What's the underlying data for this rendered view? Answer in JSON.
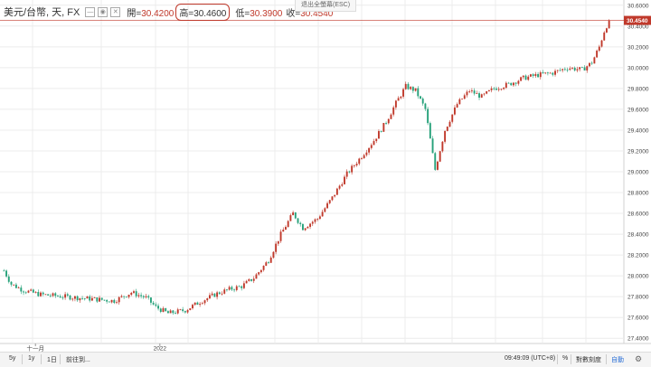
{
  "legend": {
    "symbol": "美元/台幣, 天, FX",
    "open_label": "開=",
    "open": "30.4200",
    "high_label": "高=",
    "high": "30.4600",
    "low_label": "低=",
    "low": "30.3900",
    "close_label": "收=",
    "close": "30.4540"
  },
  "esc_hint": "退出全螢幕(ESC)",
  "last_price": "30.4540",
  "colors": {
    "up": "#c0392b",
    "down": "#26a17a",
    "grid": "#ececec",
    "highlight": "#c0392b"
  },
  "bottom": {
    "btn_5y": "5y",
    "btn_1y": "1y",
    "btn_1d": "1日",
    "goto": "前往到...",
    "time": "09:49:09 (UTC+8)",
    "pct": "%",
    "log": "對數刻度",
    "auto": "自動"
  },
  "chart_data": {
    "type": "candlestick",
    "y_ticks": [
      "30.6000",
      "30.4000",
      "30.2000",
      "30.0000",
      "29.8000",
      "29.6000",
      "29.4000",
      "29.2000",
      "29.0000",
      "28.8000",
      "28.6000",
      "28.4000",
      "28.2000",
      "28.0000",
      "27.8000",
      "27.6000",
      "27.4000"
    ],
    "ylim": [
      27.35,
      30.65
    ],
    "x_ticks": [
      {
        "label": "十一月",
        "pos": 0.057
      },
      {
        "label": "2022",
        "pos": 0.257
      }
    ],
    "anchors": [
      [
        0,
        28.05
      ],
      [
        3,
        27.92
      ],
      [
        8,
        27.86
      ],
      [
        15,
        27.82
      ],
      [
        25,
        27.8
      ],
      [
        35,
        27.78
      ],
      [
        45,
        27.76
      ],
      [
        52,
        27.84
      ],
      [
        58,
        27.79
      ],
      [
        62,
        27.7
      ],
      [
        67,
        27.64
      ],
      [
        74,
        27.67
      ],
      [
        80,
        27.75
      ],
      [
        87,
        27.83
      ],
      [
        92,
        27.87
      ],
      [
        97,
        27.9
      ],
      [
        102,
        27.98
      ],
      [
        108,
        28.15
      ],
      [
        113,
        28.4
      ],
      [
        118,
        28.6
      ],
      [
        122,
        28.46
      ],
      [
        128,
        28.55
      ],
      [
        134,
        28.75
      ],
      [
        140,
        28.98
      ],
      [
        146,
        29.15
      ],
      [
        151,
        29.3
      ],
      [
        156,
        29.48
      ],
      [
        160,
        29.66
      ],
      [
        164,
        29.82
      ],
      [
        168,
        29.78
      ],
      [
        172,
        29.6
      ],
      [
        176,
        29.02
      ],
      [
        180,
        29.4
      ],
      [
        185,
        29.65
      ],
      [
        190,
        29.78
      ],
      [
        195,
        29.72
      ],
      [
        200,
        29.8
      ],
      [
        206,
        29.84
      ],
      [
        212,
        29.9
      ],
      [
        218,
        29.93
      ],
      [
        224,
        29.95
      ],
      [
        230,
        30.0
      ],
      [
        236,
        29.98
      ],
      [
        240,
        30.05
      ],
      [
        243,
        30.2
      ],
      [
        245,
        30.35
      ],
      [
        247,
        30.454
      ]
    ],
    "last_value": 30.454
  }
}
